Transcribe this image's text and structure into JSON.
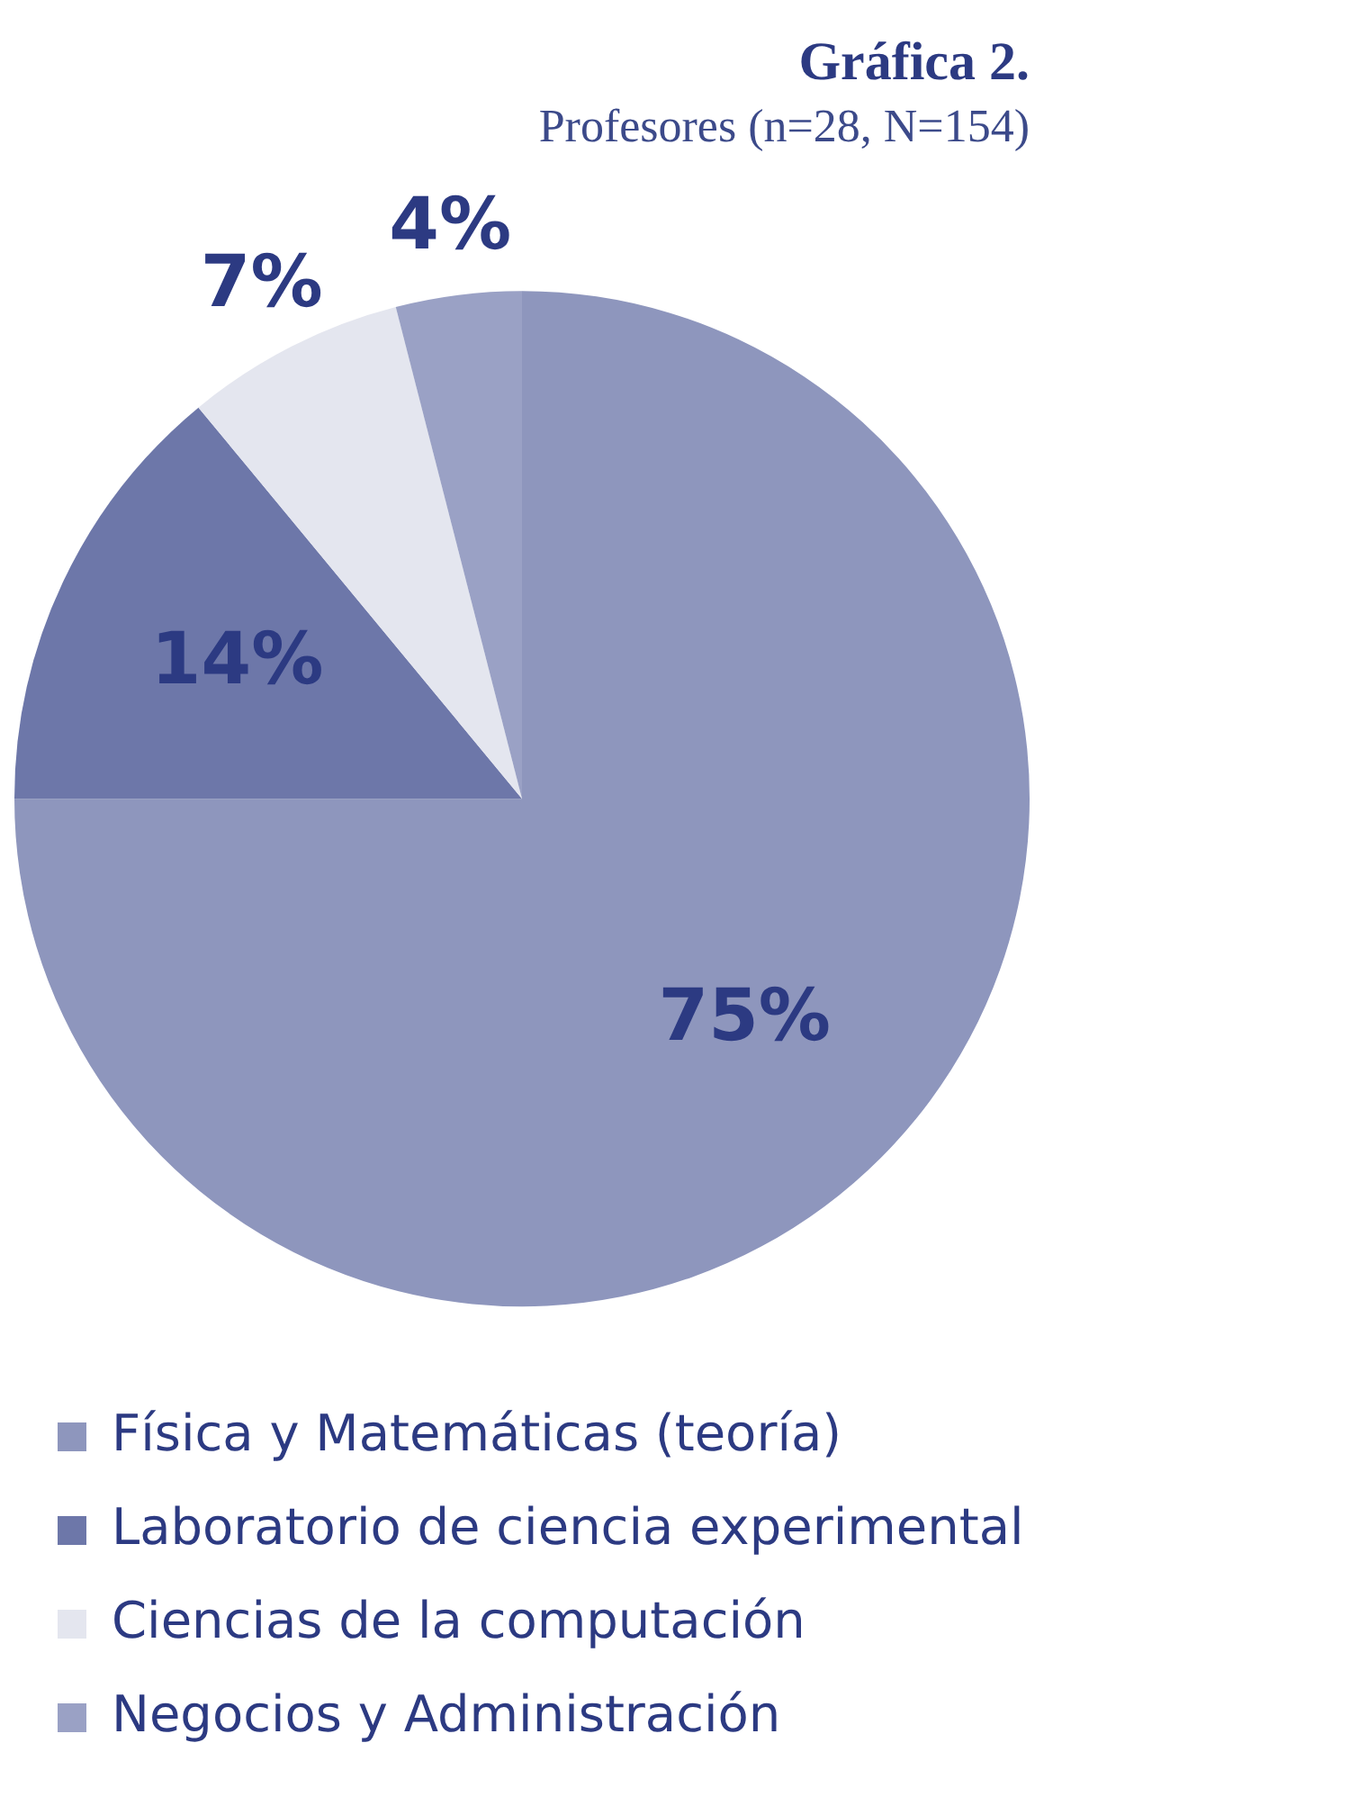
{
  "chart_data": {
    "type": "pie",
    "title": "Gráfica 2.",
    "subtitle": "Profesores (n=28, N=154)",
    "categories": [
      "Física y Matemáticas (teoría)",
      "Laboratorio de ciencia experimental",
      "Ciencias de la computación",
      "Negocios y Administración"
    ],
    "values": [
      75,
      14,
      7,
      4
    ],
    "colors": [
      "#8e96bd",
      "#6d77a9",
      "#e4e6ef",
      "#9aa1c5"
    ],
    "value_labels": [
      "75%",
      "14%",
      "7%",
      "4%"
    ],
    "legend": "bottom"
  }
}
